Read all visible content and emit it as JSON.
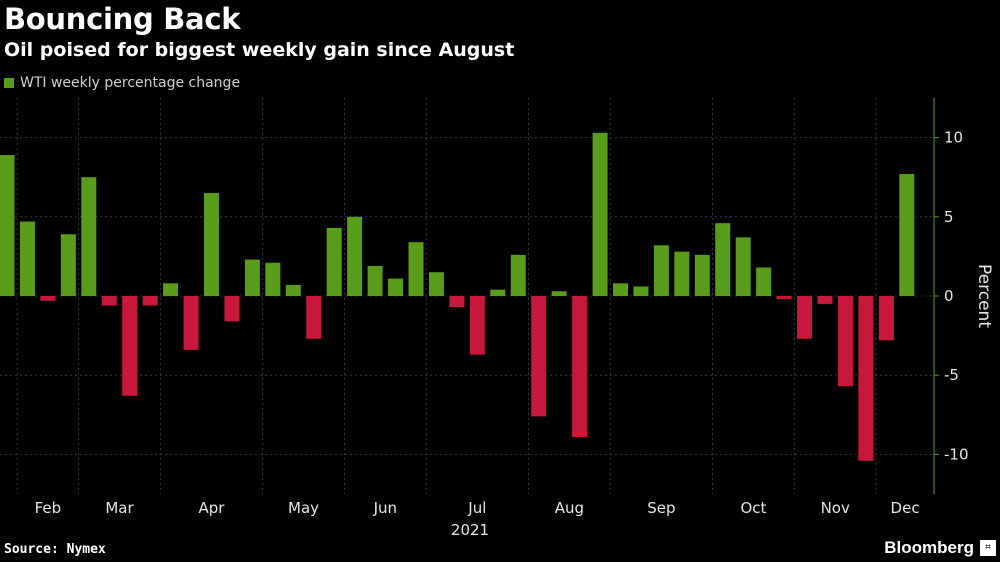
{
  "header": {
    "title": "Bouncing Back",
    "subtitle": "Oil poised for biggest weekly gain since August"
  },
  "footer": {
    "source": "Source: Nymex",
    "brand": "Bloomberg"
  },
  "colors": {
    "positive": "#5a9d1a",
    "negative": "#c8193c",
    "grid": "#3a3a3a",
    "axis": "#5a9d1a"
  },
  "chart_data": {
    "type": "bar",
    "title": "Bouncing Back",
    "subtitle": "Oil poised for biggest weekly gain since August",
    "legend": [
      "WTI weekly percentage change"
    ],
    "legend_position": "top-left",
    "ylabel": "Percent",
    "ylim": [
      -12.5,
      12.5
    ],
    "yticks": [
      -10,
      -5,
      0,
      5,
      10
    ],
    "y_axis_side": "right",
    "grid": "vertical dotted at month boundaries",
    "month_labels": [
      "Feb",
      "Mar",
      "Apr",
      "May",
      "Jun",
      "Jul",
      "Aug",
      "Sep",
      "Oct",
      "Nov",
      "Dec"
    ],
    "month_start_index": [
      1,
      4,
      8,
      13,
      17,
      21,
      26,
      30,
      35,
      39,
      43
    ],
    "year_label": "2021",
    "series": [
      {
        "name": "WTI weekly percentage change",
        "values": [
          8.9,
          4.7,
          -0.3,
          3.9,
          7.5,
          -0.6,
          -6.3,
          -0.6,
          0.8,
          -3.4,
          6.5,
          -1.6,
          2.3,
          2.1,
          0.7,
          -2.7,
          4.3,
          5.0,
          1.9,
          1.1,
          3.4,
          1.5,
          -0.7,
          -3.7,
          0.4,
          2.6,
          -7.6,
          0.3,
          -8.9,
          10.3,
          0.8,
          0.6,
          3.2,
          2.8,
          2.6,
          4.6,
          3.7,
          1.8,
          -0.2,
          -2.7,
          -0.5,
          -5.7,
          -10.4,
          -2.8,
          7.7
        ]
      }
    ]
  }
}
